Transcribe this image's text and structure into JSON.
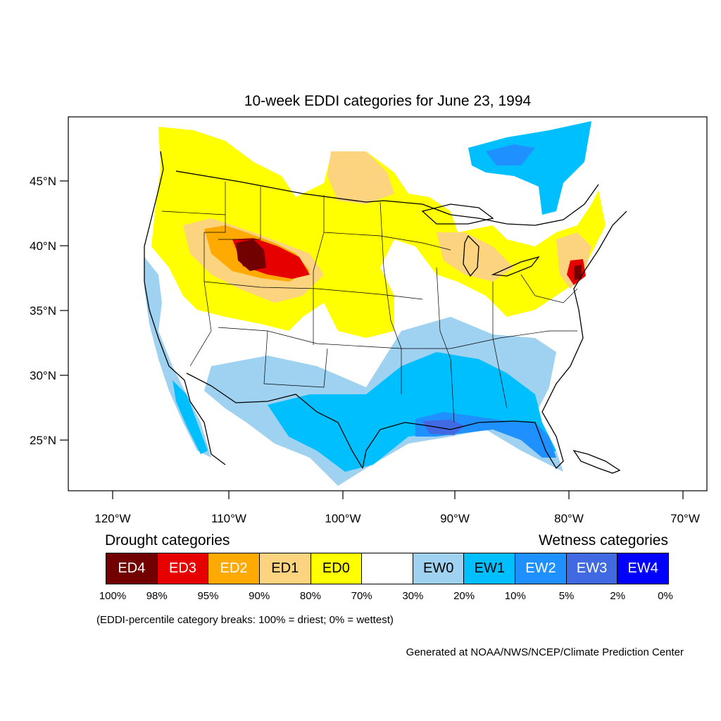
{
  "title": "10-week EDDI categories for June 23, 1994",
  "map": {
    "lat_ticks": [
      "45°N",
      "40°N",
      "35°N",
      "30°N",
      "25°N"
    ],
    "lon_ticks": [
      "120°W",
      "110°W",
      "100°W",
      "90°W",
      "80°W",
      "70°W"
    ]
  },
  "legend": {
    "drought_heading": "Drought categories",
    "wetness_heading": "Wetness categories",
    "categories": [
      {
        "label": "ED4",
        "color": "#730000",
        "text_color": "#ffffff"
      },
      {
        "label": "ED3",
        "color": "#e60000",
        "text_color": "#ffffff"
      },
      {
        "label": "ED2",
        "color": "#ffaa00",
        "text_color": "#ffffff"
      },
      {
        "label": "ED1",
        "color": "#fcd37f",
        "text_color": "#000000"
      },
      {
        "label": "ED0",
        "color": "#ffff00",
        "text_color": "#000000"
      },
      {
        "label": "",
        "color": "#ffffff",
        "text_color": "#000000"
      },
      {
        "label": "EW0",
        "color": "#9fd1f0",
        "text_color": "#000000"
      },
      {
        "label": "EW1",
        "color": "#00bfff",
        "text_color": "#000000"
      },
      {
        "label": "EW2",
        "color": "#1e90ff",
        "text_color": "#ffffff"
      },
      {
        "label": "EW3",
        "color": "#4169e1",
        "text_color": "#ffffff"
      },
      {
        "label": "EW4",
        "color": "#0000ff",
        "text_color": "#ffffff"
      }
    ],
    "breaks": [
      "100%",
      "98%",
      "95%",
      "90%",
      "80%",
      "70%",
      "30%",
      "20%",
      "10%",
      "5%",
      "2%",
      "0%"
    ],
    "note": "(EDDI-percentile category breaks: 100% = driest; 0% = wettest)"
  },
  "credit": "Generated at NOAA/NWS/NCEP/Climate Prediction Center"
}
